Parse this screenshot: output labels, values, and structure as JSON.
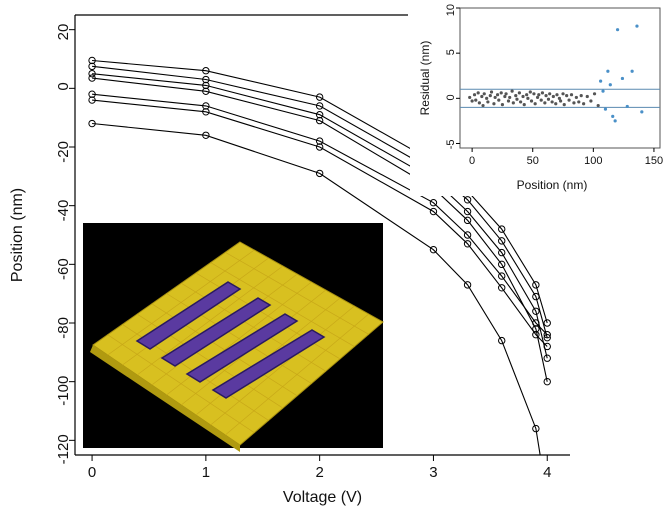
{
  "chart_data": [
    {
      "type": "line",
      "xlabel": "Voltage (V)",
      "ylabel": "Position (nm)",
      "xlim": [
        -0.15,
        4.2
      ],
      "ylim": [
        -125,
        25
      ],
      "x_ticks": [
        0,
        1,
        2,
        3,
        4
      ],
      "y_ticks": [
        20,
        0,
        -20,
        -40,
        -60,
        -80,
        -100,
        -120
      ],
      "x": [
        0,
        1,
        2,
        3,
        3.3,
        3.6,
        3.9,
        4.0
      ],
      "series": [
        {
          "values": [
            9.5,
            6,
            -3,
            -25,
            -35,
            -48,
            -67,
            -80
          ]
        },
        {
          "values": [
            7.5,
            3,
            -6,
            -28,
            -38,
            -52,
            -71,
            -85
          ]
        },
        {
          "values": [
            5,
            1,
            -9,
            -31,
            -42,
            -56,
            -76,
            -92
          ]
        },
        {
          "values": [
            3.5,
            -1,
            -11,
            -34,
            -45,
            -60,
            -82,
            -100
          ]
        },
        {
          "values": [
            -2,
            -6,
            -18,
            -39,
            -50,
            -64,
            -80,
            -84
          ]
        },
        {
          "values": [
            -4,
            -8,
            -20,
            -42,
            -53,
            -68,
            -84,
            -88
          ]
        },
        {
          "values": [
            -12,
            -16,
            -29,
            -55,
            -67,
            -86,
            -116,
            -140
          ]
        }
      ],
      "grid": false
    },
    {
      "type": "scatter",
      "xlabel": "Position (nm)",
      "ylabel": "Residual (nm)",
      "xlim": [
        -10,
        155
      ],
      "ylim": [
        -5.5,
        10
      ],
      "x_ticks": [
        0,
        50,
        100,
        150
      ],
      "y_ticks": [
        10,
        5,
        0,
        -5
      ],
      "reference_lines": [
        1,
        -1
      ],
      "points": [
        [
          -2,
          0.1
        ],
        [
          0,
          -0.3
        ],
        [
          2,
          0.4
        ],
        [
          3,
          -0.2
        ],
        [
          5,
          0.6
        ],
        [
          6,
          -0.5
        ],
        [
          8,
          0.2
        ],
        [
          9,
          -0.8
        ],
        [
          10,
          0.5
        ],
        [
          12,
          0
        ],
        [
          13,
          -0.4
        ],
        [
          15,
          0.3
        ],
        [
          16,
          0.7
        ],
        [
          18,
          -0.6
        ],
        [
          19,
          0.1
        ],
        [
          21,
          0.4
        ],
        [
          22,
          -0.2
        ],
        [
          24,
          0.6
        ],
        [
          25,
          -0.7
        ],
        [
          27,
          0.2
        ],
        [
          28,
          0.5
        ],
        [
          30,
          -0.3
        ],
        [
          31,
          0.1
        ],
        [
          33,
          0.8
        ],
        [
          34,
          -0.5
        ],
        [
          36,
          0.3
        ],
        [
          37,
          -0.1
        ],
        [
          39,
          0.6
        ],
        [
          40,
          -0.4
        ],
        [
          42,
          0.2
        ],
        [
          43,
          -0.7
        ],
        [
          45,
          0.4
        ],
        [
          46,
          0
        ],
        [
          48,
          0.7
        ],
        [
          49,
          -0.3
        ],
        [
          51,
          0.5
        ],
        [
          52,
          -0.6
        ],
        [
          54,
          0.1
        ],
        [
          55,
          0.4
        ],
        [
          57,
          -0.2
        ],
        [
          58,
          0.6
        ],
        [
          60,
          -0.5
        ],
        [
          61,
          0.3
        ],
        [
          63,
          -0.1
        ],
        [
          64,
          0.5
        ],
        [
          66,
          -0.4
        ],
        [
          67,
          0.2
        ],
        [
          69,
          -0.6
        ],
        [
          70,
          0.4
        ],
        [
          72,
          0
        ],
        [
          73,
          -0.3
        ],
        [
          75,
          0.5
        ],
        [
          76,
          -0.7
        ],
        [
          78,
          0.3
        ],
        [
          80,
          -0.2
        ],
        [
          82,
          0.4
        ],
        [
          84,
          -0.5
        ],
        [
          86,
          0.1
        ],
        [
          88,
          -0.4
        ],
        [
          90,
          0.3
        ],
        [
          92,
          -0.6
        ],
        [
          95,
          0.2
        ],
        [
          98,
          -0.3
        ],
        [
          101,
          0.5
        ],
        [
          104,
          -0.8
        ],
        [
          106,
          1.9
        ],
        [
          108,
          0.8
        ],
        [
          110,
          -1.2
        ],
        [
          112,
          3.0
        ],
        [
          114,
          1.5
        ],
        [
          116,
          -2.0
        ],
        [
          118,
          -2.5
        ],
        [
          120,
          7.6
        ],
        [
          124,
          2.2
        ],
        [
          128,
          -0.9
        ],
        [
          132,
          3.0
        ],
        [
          136,
          8.0
        ],
        [
          140,
          -1.5
        ]
      ]
    }
  ],
  "colors": {
    "curve": "#000000",
    "inset_points_dense": "#555555",
    "inset_points_sparse": "#4a90c8",
    "inset_reference_lines": "#5a8ab0",
    "afm_background": "#000000",
    "afm_surface": "#d8c020",
    "afm_trench": "#5a3aa0"
  }
}
